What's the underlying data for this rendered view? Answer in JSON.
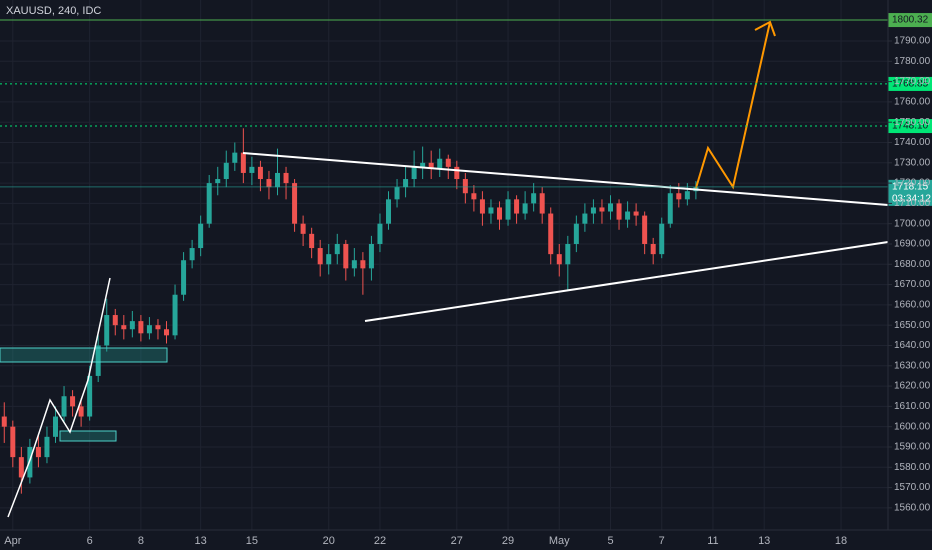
{
  "chart_data": {
    "type": "candlestick",
    "title": "XAUUSD, 240, IDC",
    "up_color": "#26a69a",
    "down_color": "#ef5350",
    "grid": true,
    "categories": [
      null,
      "Apr",
      null,
      null,
      null,
      null,
      null,
      null,
      null,
      null,
      "6",
      null,
      null,
      null,
      null,
      null,
      "8",
      null,
      null,
      null,
      null,
      null,
      null,
      "13",
      null,
      null,
      null,
      null,
      null,
      "15",
      null,
      null,
      null,
      null,
      null,
      null,
      null,
      null,
      "20",
      null,
      null,
      null,
      null,
      null,
      "22",
      null,
      null,
      null,
      null,
      null,
      null,
      null,
      null,
      "27",
      null,
      null,
      null,
      null,
      null,
      "29",
      null,
      null,
      null,
      null,
      null,
      "May",
      null,
      null,
      null,
      null,
      null,
      "5",
      null,
      null,
      null,
      null,
      null,
      "7",
      null,
      null,
      null,
      null,
      null,
      "11",
      null,
      null,
      null,
      null,
      null,
      "13",
      null,
      null,
      null,
      null,
      null,
      null,
      null,
      null,
      "18",
      null,
      null,
      null,
      null,
      null
    ],
    "open": [
      1605,
      1600,
      1585,
      1575,
      1590,
      1585,
      1595,
      1605,
      1615,
      1610,
      1605,
      1625,
      1640,
      1655,
      1650,
      1648,
      1652,
      1646,
      1650,
      1648,
      1645,
      1665,
      1682,
      1688,
      1700,
      1720,
      1722,
      1730,
      1735,
      1725,
      1728,
      1722,
      1718,
      1725,
      1720,
      1700,
      1695,
      1688,
      1680,
      1685,
      1690,
      1678,
      1682,
      1678,
      1690,
      1700,
      1712,
      1718,
      1722,
      1728,
      1730,
      1727,
      1732,
      1728,
      1722,
      1715,
      1712,
      1705,
      1708,
      1702,
      1712,
      1705,
      1710,
      1715,
      1705,
      1685,
      1680,
      1690,
      1700,
      1705,
      1708,
      1706,
      1710,
      1702,
      1706,
      1704,
      1690,
      1685,
      1700,
      1715,
      1712,
      1716,
      null,
      null,
      null,
      null,
      null,
      null,
      null,
      null,
      null,
      null,
      null,
      null,
      null,
      null,
      null,
      null,
      null,
      null,
      null,
      null,
      null,
      null
    ],
    "high": [
      1612,
      1603,
      1590,
      1594,
      1596,
      1600,
      1610,
      1620,
      1618,
      1614,
      1630,
      1645,
      1663,
      1658,
      1655,
      1657,
      1655,
      1654,
      1653,
      1652,
      1670,
      1686,
      1692,
      1704,
      1724,
      1728,
      1736,
      1740,
      1747,
      1733,
      1731,
      1726,
      1737,
      1728,
      1722,
      1704,
      1698,
      1692,
      1690,
      1695,
      1692,
      1688,
      1686,
      1694,
      1705,
      1716,
      1722,
      1728,
      1736,
      1738,
      1736,
      1737,
      1734,
      1731,
      1725,
      1719,
      1716,
      1712,
      1711,
      1716,
      1714,
      1716,
      1720,
      1718,
      1708,
      1690,
      1694,
      1704,
      1710,
      1712,
      1712,
      1714,
      1712,
      1711,
      1710,
      1706,
      1693,
      1703,
      1719,
      1720,
      1720,
      1721,
      null,
      null,
      null,
      null,
      null,
      null,
      null,
      null,
      null,
      null,
      null,
      null,
      null,
      null,
      null,
      null,
      null,
      null,
      null,
      null,
      null,
      null
    ],
    "low": [
      1592,
      1580,
      1567,
      1572,
      1580,
      1582,
      1592,
      1602,
      1605,
      1600,
      1603,
      1622,
      1637,
      1645,
      1643,
      1644,
      1642,
      1643,
      1643,
      1641,
      1643,
      1662,
      1678,
      1684,
      1698,
      1714,
      1718,
      1726,
      1720,
      1719,
      1716,
      1712,
      1714,
      1712,
      1696,
      1689,
      1683,
      1674,
      1675,
      1680,
      1672,
      1674,
      1665,
      1672,
      1686,
      1697,
      1708,
      1713,
      1718,
      1722,
      1722,
      1723,
      1722,
      1717,
      1710,
      1706,
      1699,
      1700,
      1697,
      1699,
      1700,
      1702,
      1706,
      1700,
      1680,
      1674,
      1667,
      1686,
      1696,
      1700,
      1700,
      1702,
      1697,
      1698,
      1699,
      1685,
      1680,
      1683,
      1698,
      1708,
      1709,
      1712,
      null,
      null,
      null,
      null,
      null,
      null,
      null,
      null,
      null,
      null,
      null,
      null,
      null,
      null,
      null,
      null,
      null,
      null,
      null,
      null,
      null,
      null
    ],
    "close": [
      1600,
      1585,
      1575,
      1590,
      1585,
      1595,
      1605,
      1615,
      1610,
      1605,
      1625,
      1640,
      1655,
      1650,
      1648,
      1652,
      1646,
      1650,
      1648,
      1645,
      1665,
      1682,
      1688,
      1700,
      1720,
      1722,
      1730,
      1735,
      1725,
      1728,
      1722,
      1718,
      1725,
      1720,
      1700,
      1695,
      1688,
      1680,
      1685,
      1690,
      1678,
      1682,
      1678,
      1690,
      1700,
      1712,
      1718,
      1722,
      1728,
      1730,
      1727,
      1732,
      1728,
      1722,
      1715,
      1712,
      1705,
      1708,
      1702,
      1712,
      1705,
      1710,
      1715,
      1705,
      1685,
      1680,
      1690,
      1700,
      1705,
      1708,
      1706,
      1710,
      1702,
      1706,
      1704,
      1690,
      1685,
      1700,
      1715,
      1712,
      1716,
      1718,
      null,
      null,
      null,
      null,
      null,
      null,
      null,
      null,
      null,
      null,
      null,
      null,
      null,
      null,
      null,
      null,
      null,
      null,
      null,
      null,
      null,
      null
    ],
    "ylim": [
      1549.1,
      1810.2
    ],
    "yticks": [
      {
        "value": 1560,
        "label": "1560.00"
      },
      {
        "value": 1570,
        "label": "1570.00"
      },
      {
        "value": 1580,
        "label": "1580.00"
      },
      {
        "value": 1590,
        "label": "1590.00"
      },
      {
        "value": 1600,
        "label": "1600.00"
      },
      {
        "value": 1610,
        "label": "1610.00"
      },
      {
        "value": 1620,
        "label": "1620.00"
      },
      {
        "value": 1630,
        "label": "1630.00"
      },
      {
        "value": 1640,
        "label": "1640.00"
      },
      {
        "value": 1650,
        "label": "1650.00"
      },
      {
        "value": 1660,
        "label": "1660.00"
      },
      {
        "value": 1670,
        "label": "1670.00"
      },
      {
        "value": 1680,
        "label": "1680.00"
      },
      {
        "value": 1690,
        "label": "1690.00"
      },
      {
        "value": 1700,
        "label": "1700.00"
      },
      {
        "value": 1710,
        "label": "1710.00"
      },
      {
        "value": 1720,
        "label": "1720.00"
      },
      {
        "value": 1730,
        "label": "1730.00"
      },
      {
        "value": 1740,
        "label": "1740.00"
      },
      {
        "value": 1750,
        "label": "1750.00"
      },
      {
        "value": 1760,
        "label": "1760.00"
      },
      {
        "value": 1770,
        "label": "1770.00"
      },
      {
        "value": 1780,
        "label": "1780.00"
      },
      {
        "value": 1790,
        "label": "1790.00"
      }
    ],
    "levels": [
      {
        "value": 1800.32,
        "style": "solid",
        "color": "#4caf50"
      },
      {
        "value": 1768.85,
        "style": "dotted",
        "color": "#00e676"
      },
      {
        "value": 1748.1,
        "label": "1748.10",
        "style": "dotted",
        "color": "#00e676"
      }
    ],
    "last_price": {
      "value": 1718.15,
      "countdown": "03:34:12",
      "color": "#26a69a"
    }
  }
}
